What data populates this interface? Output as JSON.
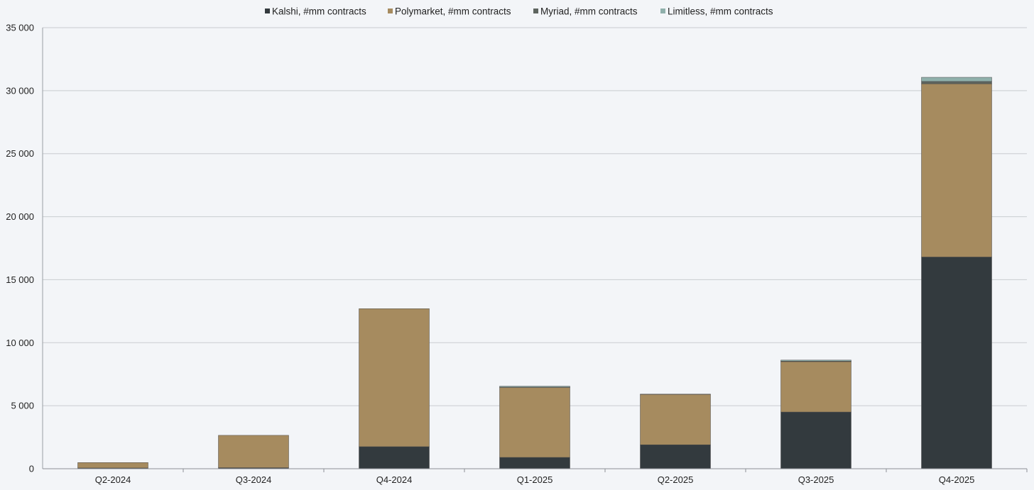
{
  "chart_data": {
    "type": "bar",
    "stacked": true,
    "title": "",
    "xlabel": "",
    "ylabel": "",
    "categories": [
      "Q2-2024",
      "Q3-2024",
      "Q4-2024",
      "Q1-2025",
      "Q2-2025",
      "Q3-2025",
      "Q4-2025"
    ],
    "series": [
      {
        "name": "Kalshi, #mm contracts",
        "color": "#333a3e",
        "values": [
          60,
          80,
          1750,
          900,
          1900,
          4500,
          16800
        ]
      },
      {
        "name": "Polymarket, #mm contracts",
        "color": "#a68b5f",
        "values": [
          430,
          2570,
          10950,
          5550,
          4000,
          4000,
          13750
        ]
      },
      {
        "name": "Myriad, #mm contracts",
        "color": "#5e655f",
        "values": [
          0,
          0,
          0,
          20,
          20,
          40,
          180
        ]
      },
      {
        "name": "Limitless, #mm contracts",
        "color": "#8fb0ab",
        "values": [
          0,
          0,
          0,
          80,
          0,
          80,
          330
        ]
      }
    ],
    "ylim": [
      0,
      35000
    ],
    "yticks": [
      0,
      5000,
      10000,
      15000,
      20000,
      25000,
      30000,
      35000
    ],
    "ytick_labels": [
      "0",
      "5 000",
      "10 000",
      "15 000",
      "20 000",
      "25 000",
      "30 000",
      "35 000"
    ],
    "grid": true,
    "legend_position": "top-center"
  }
}
